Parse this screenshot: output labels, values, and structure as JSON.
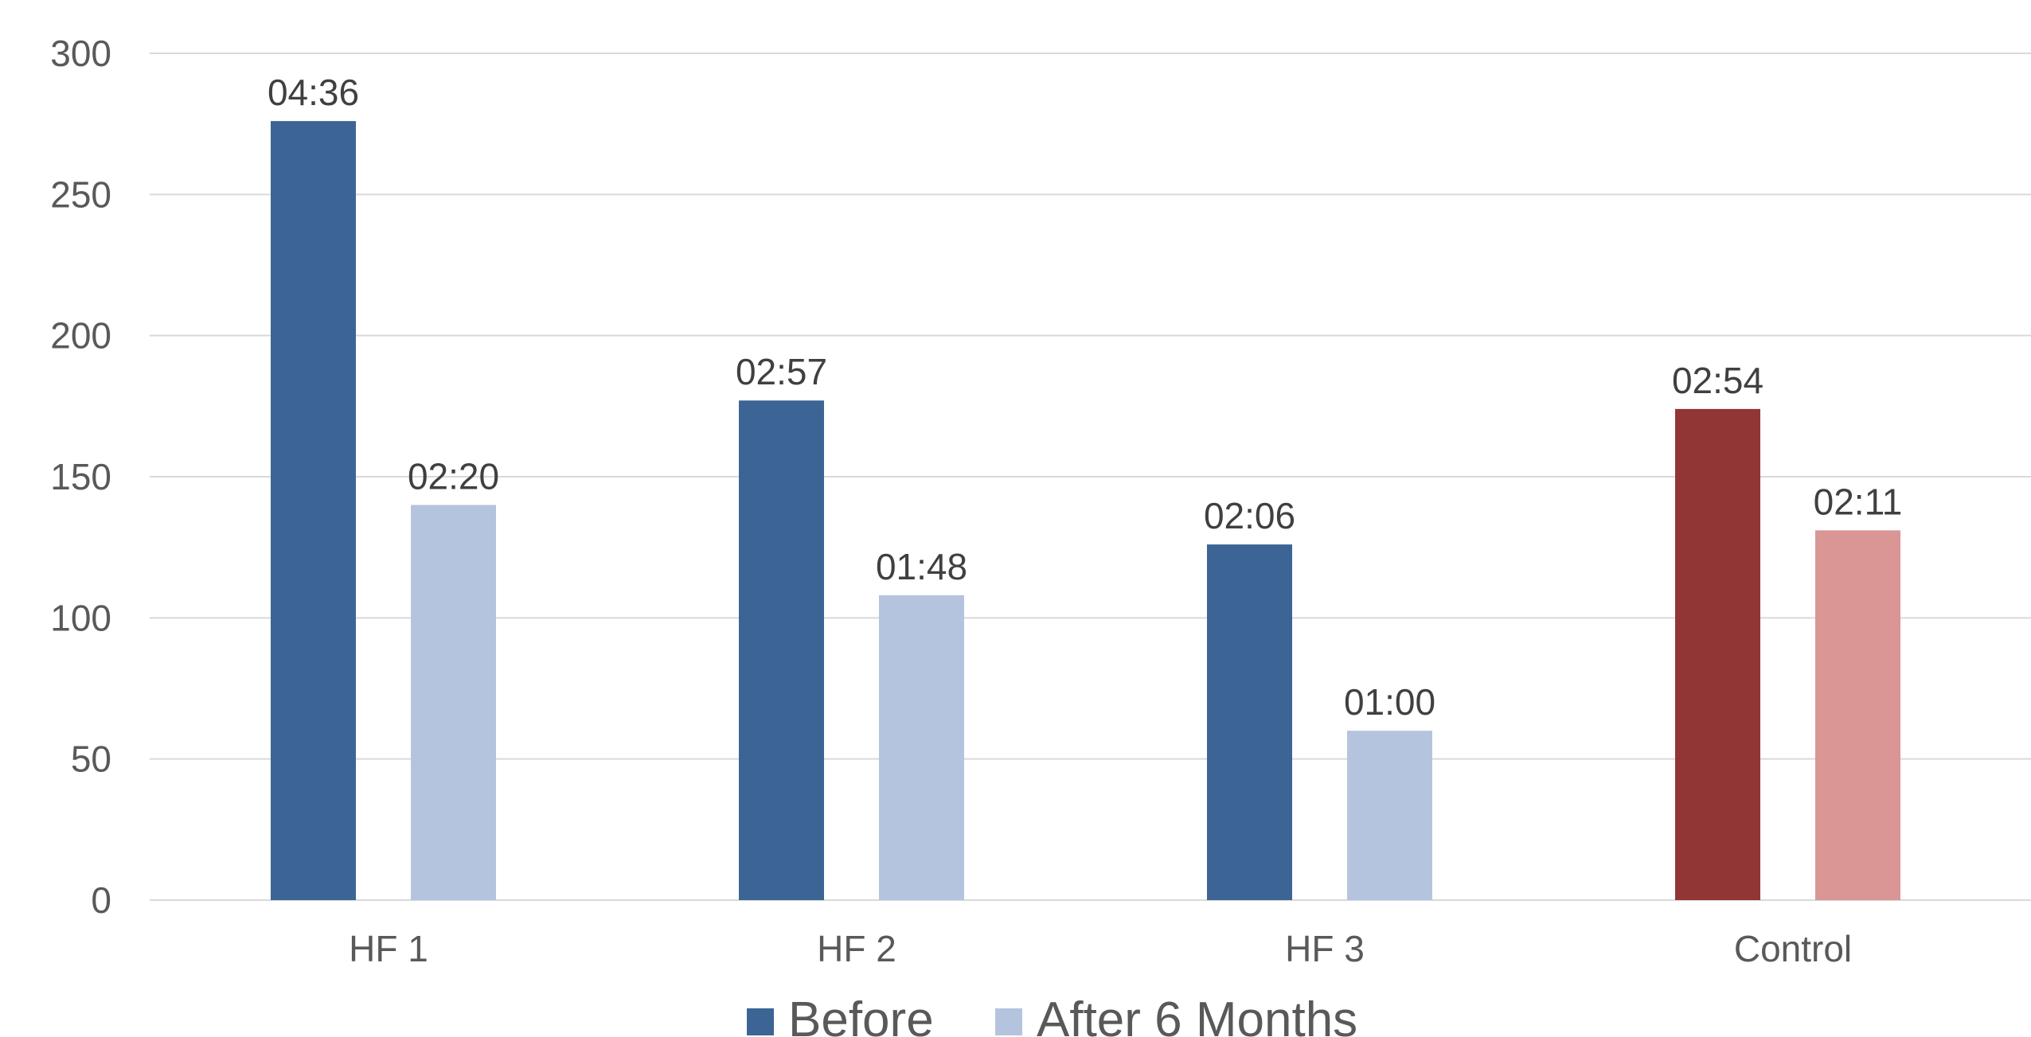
{
  "chart_data": {
    "type": "bar",
    "title": "",
    "xlabel": "",
    "ylabel": "",
    "ylim": [
      0,
      300
    ],
    "yticks": [
      0,
      50,
      100,
      150,
      200,
      250,
      300
    ],
    "grid": true,
    "legend_position": "bottom",
    "categories": [
      "HF 1",
      "HF 2",
      "HF 3",
      "Control"
    ],
    "series": [
      {
        "name": "Before",
        "values": [
          276,
          177,
          126,
          174
        ],
        "labels": [
          "04:36",
          "02:57",
          "02:06",
          "02:54"
        ],
        "color": "#3c6595",
        "point_colors": [
          "#3c6595",
          "#3c6595",
          "#3c6595",
          "#923535"
        ]
      },
      {
        "name": "After 6 Months",
        "values": [
          140,
          108,
          60,
          131
        ],
        "labels": [
          "02:20",
          "01:48",
          "01:00",
          "02:11"
        ],
        "color": "#b5c4de",
        "point_colors": [
          "#b5c4de",
          "#b5c4de",
          "#b5c4de",
          "#da9595"
        ]
      }
    ]
  }
}
